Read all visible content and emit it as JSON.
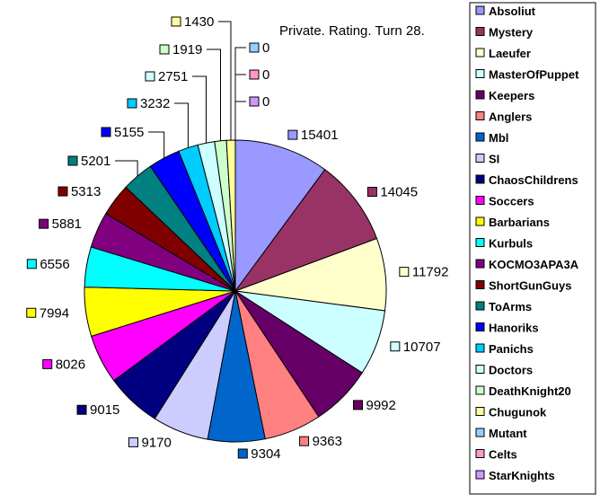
{
  "chart_data": {
    "type": "pie",
    "title": "Private. Rating. Turn 28.",
    "legend_position": "right",
    "series": [
      {
        "name": "Absoliut",
        "value": 15401,
        "color": "#9999ff"
      },
      {
        "name": "Mystery",
        "value": 14045,
        "color": "#993366"
      },
      {
        "name": "Laeufer",
        "value": 11792,
        "color": "#ffffcc"
      },
      {
        "name": "MasterOfPuppet",
        "value": 10707,
        "color": "#ccffff"
      },
      {
        "name": "Keepers",
        "value": 9992,
        "color": "#660066"
      },
      {
        "name": "Anglers",
        "value": 9363,
        "color": "#ff8080"
      },
      {
        "name": "Mbl",
        "value": 9304,
        "color": "#0066cc"
      },
      {
        "name": "SI",
        "value": 9170,
        "color": "#ccccff"
      },
      {
        "name": "ChaosChildrens",
        "value": 9015,
        "color": "#000080"
      },
      {
        "name": "Soccers",
        "value": 8026,
        "color": "#ff00ff"
      },
      {
        "name": "Barbarians",
        "value": 7994,
        "color": "#ffff00"
      },
      {
        "name": "Kurbuls",
        "value": 6556,
        "color": "#00ffff"
      },
      {
        "name": "KOCMO3APA3A",
        "value": 5881,
        "color": "#800080"
      },
      {
        "name": "ShortGunGuys",
        "value": 5313,
        "color": "#800000"
      },
      {
        "name": "ToArms",
        "value": 5201,
        "color": "#008080"
      },
      {
        "name": "Hanoriks",
        "value": 5155,
        "color": "#0000ff"
      },
      {
        "name": "Panichs",
        "value": 3232,
        "color": "#00ccff"
      },
      {
        "name": "Doctors",
        "value": 2751,
        "color": "#ccffff"
      },
      {
        "name": "DeathKnight20",
        "value": 1919,
        "color": "#ccffcc"
      },
      {
        "name": "Chugunok",
        "value": 1430,
        "color": "#ffff99"
      },
      {
        "name": "Mutant",
        "value": 0,
        "color": "#99ccff"
      },
      {
        "name": "Celts",
        "value": 0,
        "color": "#ff99cc"
      },
      {
        "name": "StarKnights",
        "value": 0,
        "color": "#cc99ff"
      }
    ]
  }
}
